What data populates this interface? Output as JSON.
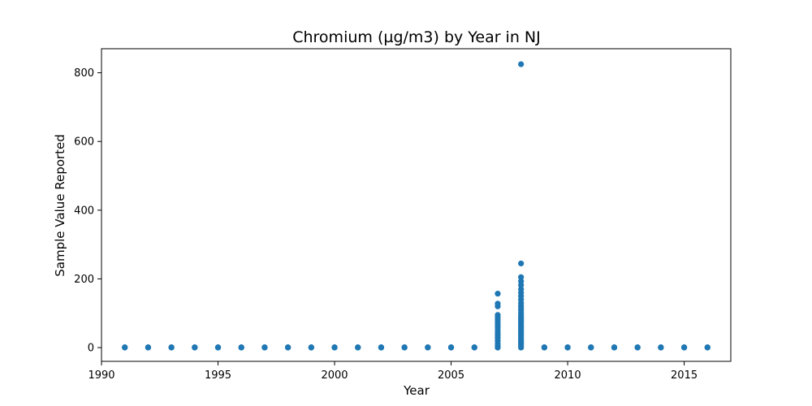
{
  "chart_data": {
    "type": "scatter",
    "title": "Chromium (µg/m3) by Year in NJ",
    "xlabel": "Year",
    "ylabel": "Sample Value Reported",
    "xlim": [
      1990,
      2017
    ],
    "ylim": [
      -40,
      870
    ],
    "xticks": [
      1990,
      1995,
      2000,
      2005,
      2010,
      2015
    ],
    "yticks": [
      0,
      200,
      400,
      600,
      800
    ],
    "grid": false,
    "legend": "none",
    "marker_color": "#1f77b4",
    "series": [
      {
        "points": [
          {
            "x": 1991,
            "y": 0
          },
          {
            "x": 1991,
            "y": 1
          },
          {
            "x": 1992,
            "y": 0
          },
          {
            "x": 1992,
            "y": 1
          },
          {
            "x": 1993,
            "y": 0
          },
          {
            "x": 1993,
            "y": 1
          },
          {
            "x": 1994,
            "y": 0
          },
          {
            "x": 1994,
            "y": 1
          },
          {
            "x": 1995,
            "y": 0
          },
          {
            "x": 1995,
            "y": 1
          },
          {
            "x": 1996,
            "y": 0
          },
          {
            "x": 1996,
            "y": 1
          },
          {
            "x": 1997,
            "y": 0
          },
          {
            "x": 1997,
            "y": 1
          },
          {
            "x": 1998,
            "y": 0
          },
          {
            "x": 1998,
            "y": 1
          },
          {
            "x": 1999,
            "y": 0
          },
          {
            "x": 1999,
            "y": 1
          },
          {
            "x": 2000,
            "y": 0
          },
          {
            "x": 2000,
            "y": 1
          },
          {
            "x": 2001,
            "y": 0
          },
          {
            "x": 2001,
            "y": 1
          },
          {
            "x": 2002,
            "y": 0
          },
          {
            "x": 2002,
            "y": 1
          },
          {
            "x": 2003,
            "y": 0
          },
          {
            "x": 2003,
            "y": 1
          },
          {
            "x": 2004,
            "y": 0
          },
          {
            "x": 2004,
            "y": 1
          },
          {
            "x": 2005,
            "y": 0
          },
          {
            "x": 2005,
            "y": 1
          },
          {
            "x": 2006,
            "y": 0
          },
          {
            "x": 2006,
            "y": 1
          },
          {
            "x": 2007,
            "y": 0
          },
          {
            "x": 2007,
            "y": 5
          },
          {
            "x": 2007,
            "y": 12
          },
          {
            "x": 2007,
            "y": 20
          },
          {
            "x": 2007,
            "y": 28
          },
          {
            "x": 2007,
            "y": 35
          },
          {
            "x": 2007,
            "y": 42
          },
          {
            "x": 2007,
            "y": 50
          },
          {
            "x": 2007,
            "y": 58
          },
          {
            "x": 2007,
            "y": 65
          },
          {
            "x": 2007,
            "y": 72
          },
          {
            "x": 2007,
            "y": 80
          },
          {
            "x": 2007,
            "y": 88
          },
          {
            "x": 2007,
            "y": 95
          },
          {
            "x": 2007,
            "y": 120
          },
          {
            "x": 2007,
            "y": 128
          },
          {
            "x": 2007,
            "y": 157
          },
          {
            "x": 2008,
            "y": 0
          },
          {
            "x": 2008,
            "y": 5
          },
          {
            "x": 2008,
            "y": 10
          },
          {
            "x": 2008,
            "y": 15
          },
          {
            "x": 2008,
            "y": 20
          },
          {
            "x": 2008,
            "y": 25
          },
          {
            "x": 2008,
            "y": 30
          },
          {
            "x": 2008,
            "y": 35
          },
          {
            "x": 2008,
            "y": 40
          },
          {
            "x": 2008,
            "y": 45
          },
          {
            "x": 2008,
            "y": 50
          },
          {
            "x": 2008,
            "y": 55
          },
          {
            "x": 2008,
            "y": 60
          },
          {
            "x": 2008,
            "y": 65
          },
          {
            "x": 2008,
            "y": 70
          },
          {
            "x": 2008,
            "y": 75
          },
          {
            "x": 2008,
            "y": 80
          },
          {
            "x": 2008,
            "y": 85
          },
          {
            "x": 2008,
            "y": 90
          },
          {
            "x": 2008,
            "y": 95
          },
          {
            "x": 2008,
            "y": 100
          },
          {
            "x": 2008,
            "y": 108
          },
          {
            "x": 2008,
            "y": 115
          },
          {
            "x": 2008,
            "y": 122
          },
          {
            "x": 2008,
            "y": 130
          },
          {
            "x": 2008,
            "y": 140
          },
          {
            "x": 2008,
            "y": 150
          },
          {
            "x": 2008,
            "y": 160
          },
          {
            "x": 2008,
            "y": 170
          },
          {
            "x": 2008,
            "y": 182
          },
          {
            "x": 2008,
            "y": 193
          },
          {
            "x": 2008,
            "y": 205
          },
          {
            "x": 2008,
            "y": 245
          },
          {
            "x": 2008,
            "y": 825
          },
          {
            "x": 2009,
            "y": 0
          },
          {
            "x": 2009,
            "y": 1
          },
          {
            "x": 2010,
            "y": 0
          },
          {
            "x": 2010,
            "y": 1
          },
          {
            "x": 2011,
            "y": 0
          },
          {
            "x": 2011,
            "y": 1
          },
          {
            "x": 2012,
            "y": 0
          },
          {
            "x": 2012,
            "y": 1
          },
          {
            "x": 2013,
            "y": 0
          },
          {
            "x": 2013,
            "y": 1
          },
          {
            "x": 2014,
            "y": 0
          },
          {
            "x": 2014,
            "y": 1
          },
          {
            "x": 2015,
            "y": 0
          },
          {
            "x": 2015,
            "y": 1
          },
          {
            "x": 2016,
            "y": 0
          },
          {
            "x": 2016,
            "y": 1
          }
        ]
      }
    ]
  }
}
